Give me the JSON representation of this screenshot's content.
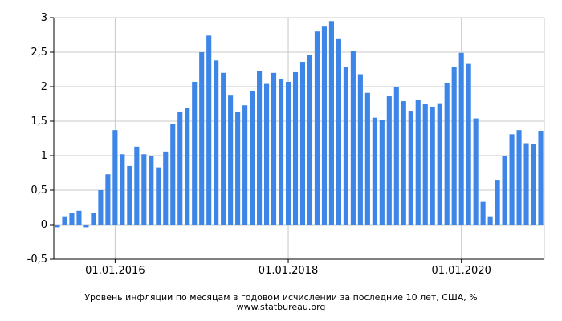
{
  "chart_data": {
    "type": "bar",
    "title": "Уровень инфляции по месяцам в годовом исчислении за последние 10 лет, США, %",
    "source": "www.statbureau.org",
    "xlabel": "",
    "ylabel": "",
    "ylim": [
      -0.5,
      3
    ],
    "yticks": [
      -0.5,
      0,
      0.5,
      1,
      1.5,
      2,
      2.5,
      3
    ],
    "ytick_labels": [
      "-0,5",
      "0",
      "0,5",
      "1",
      "1,5",
      "2",
      "2,5",
      "3"
    ],
    "xtick_labels": [
      "01.01.2016",
      "01.01.2018",
      "01.01.2020"
    ],
    "xtick_months": [
      "2016-01",
      "2018-01",
      "2020-01"
    ],
    "grid": true,
    "bar_color": "#3d85e6",
    "categories": [
      "2015-05",
      "2015-06",
      "2015-07",
      "2015-08",
      "2015-09",
      "2015-10",
      "2015-11",
      "2015-12",
      "2016-01",
      "2016-02",
      "2016-03",
      "2016-04",
      "2016-05",
      "2016-06",
      "2016-07",
      "2016-08",
      "2016-09",
      "2016-10",
      "2016-11",
      "2016-12",
      "2017-01",
      "2017-02",
      "2017-03",
      "2017-04",
      "2017-05",
      "2017-06",
      "2017-07",
      "2017-08",
      "2017-09",
      "2017-10",
      "2017-11",
      "2017-12",
      "2018-01",
      "2018-02",
      "2018-03",
      "2018-04",
      "2018-05",
      "2018-06",
      "2018-07",
      "2018-08",
      "2018-09",
      "2018-10",
      "2018-11",
      "2018-12",
      "2019-01",
      "2019-02",
      "2019-03",
      "2019-04",
      "2019-05",
      "2019-06",
      "2019-07",
      "2019-08",
      "2019-09",
      "2019-10",
      "2019-11",
      "2019-12",
      "2020-01",
      "2020-02",
      "2020-03",
      "2020-04",
      "2020-05",
      "2020-06",
      "2020-07",
      "2020-08",
      "2020-09",
      "2020-10",
      "2020-11",
      "2020-12"
    ],
    "values": [
      -0.04,
      0.12,
      0.17,
      0.2,
      -0.04,
      0.17,
      0.5,
      0.73,
      1.37,
      1.02,
      0.85,
      1.13,
      1.02,
      1.0,
      0.83,
      1.06,
      1.46,
      1.64,
      1.69,
      2.07,
      2.5,
      2.74,
      2.38,
      2.2,
      1.87,
      1.63,
      1.73,
      1.94,
      2.23,
      2.04,
      2.2,
      2.11,
      2.07,
      2.21,
      2.36,
      2.46,
      2.8,
      2.87,
      2.95,
      2.7,
      2.28,
      2.52,
      2.18,
      1.91,
      1.55,
      1.52,
      1.86,
      2.0,
      1.79,
      1.65,
      1.81,
      1.75,
      1.71,
      1.76,
      2.05,
      2.29,
      2.49,
      2.33,
      1.54,
      0.33,
      0.12,
      0.65,
      0.99,
      1.31,
      1.37,
      1.18,
      1.17,
      1.36
    ]
  }
}
